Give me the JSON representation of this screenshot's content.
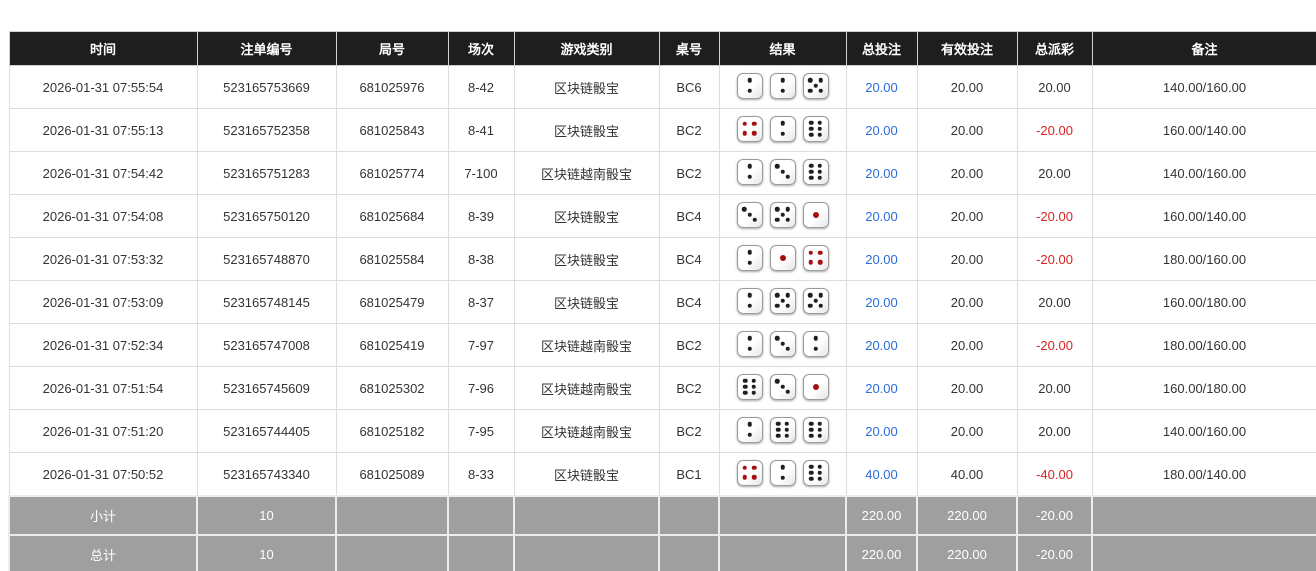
{
  "colors": {
    "bet_amount_blue": "#2b6cd9",
    "negative_red": "#dd2222",
    "header_background": "#1e1e1e",
    "summary_row_background": "#9f9f9f",
    "dice_dot_black": "#1f1f1f",
    "dice_dot_red": "#a50f0f"
  },
  "table": {
    "columns": [
      {
        "key": "time",
        "label": "时间"
      },
      {
        "key": "bet_id",
        "label": "注单编号"
      },
      {
        "key": "round",
        "label": "局号"
      },
      {
        "key": "session",
        "label": "场次"
      },
      {
        "key": "game",
        "label": "游戏类别"
      },
      {
        "key": "table_no",
        "label": "桌号"
      },
      {
        "key": "result",
        "label": "结果"
      },
      {
        "key": "total_bet",
        "label": "总投注"
      },
      {
        "key": "valid_bet",
        "label": "有效投注"
      },
      {
        "key": "payout",
        "label": "总派彩"
      },
      {
        "key": "remark",
        "label": "备注"
      }
    ],
    "dice_red_values": [
      1,
      4
    ],
    "rows": [
      {
        "time": "2026-01-31 07:55:54",
        "bet_id": "523165753669",
        "round": "681025976",
        "session": "8-42",
        "game": "区块链骰宝",
        "table_no": "BC6",
        "dice": [
          2,
          2,
          5
        ],
        "total_bet": "20.00",
        "valid_bet": "20.00",
        "payout": "20.00",
        "remark": "140.00/160.00"
      },
      {
        "time": "2026-01-31 07:55:13",
        "bet_id": "523165752358",
        "round": "681025843",
        "session": "8-41",
        "game": "区块链骰宝",
        "table_no": "BC2",
        "dice": [
          4,
          2,
          6
        ],
        "total_bet": "20.00",
        "valid_bet": "20.00",
        "payout": "-20.00",
        "remark": "160.00/140.00"
      },
      {
        "time": "2026-01-31 07:54:42",
        "bet_id": "523165751283",
        "round": "681025774",
        "session": "7-100",
        "game": "区块链越南骰宝",
        "table_no": "BC2",
        "dice": [
          2,
          3,
          6
        ],
        "total_bet": "20.00",
        "valid_bet": "20.00",
        "payout": "20.00",
        "remark": "140.00/160.00"
      },
      {
        "time": "2026-01-31 07:54:08",
        "bet_id": "523165750120",
        "round": "681025684",
        "session": "8-39",
        "game": "区块链骰宝",
        "table_no": "BC4",
        "dice": [
          3,
          5,
          1
        ],
        "total_bet": "20.00",
        "valid_bet": "20.00",
        "payout": "-20.00",
        "remark": "160.00/140.00"
      },
      {
        "time": "2026-01-31 07:53:32",
        "bet_id": "523165748870",
        "round": "681025584",
        "session": "8-38",
        "game": "区块链骰宝",
        "table_no": "BC4",
        "dice": [
          2,
          1,
          4
        ],
        "total_bet": "20.00",
        "valid_bet": "20.00",
        "payout": "-20.00",
        "remark": "180.00/160.00"
      },
      {
        "time": "2026-01-31 07:53:09",
        "bet_id": "523165748145",
        "round": "681025479",
        "session": "8-37",
        "game": "区块链骰宝",
        "table_no": "BC4",
        "dice": [
          2,
          5,
          5
        ],
        "total_bet": "20.00",
        "valid_bet": "20.00",
        "payout": "20.00",
        "remark": "160.00/180.00"
      },
      {
        "time": "2026-01-31 07:52:34",
        "bet_id": "523165747008",
        "round": "681025419",
        "session": "7-97",
        "game": "区块链越南骰宝",
        "table_no": "BC2",
        "dice": [
          2,
          3,
          2
        ],
        "total_bet": "20.00",
        "valid_bet": "20.00",
        "payout": "-20.00",
        "remark": "180.00/160.00"
      },
      {
        "time": "2026-01-31 07:51:54",
        "bet_id": "523165745609",
        "round": "681025302",
        "session": "7-96",
        "game": "区块链越南骰宝",
        "table_no": "BC2",
        "dice": [
          6,
          3,
          1
        ],
        "total_bet": "20.00",
        "valid_bet": "20.00",
        "payout": "20.00",
        "remark": "160.00/180.00"
      },
      {
        "time": "2026-01-31 07:51:20",
        "bet_id": "523165744405",
        "round": "681025182",
        "session": "7-95",
        "game": "区块链越南骰宝",
        "table_no": "BC2",
        "dice": [
          2,
          6,
          6
        ],
        "total_bet": "20.00",
        "valid_bet": "20.00",
        "payout": "20.00",
        "remark": "140.00/160.00"
      },
      {
        "time": "2026-01-31 07:50:52",
        "bet_id": "523165743340",
        "round": "681025089",
        "session": "8-33",
        "game": "区块链骰宝",
        "table_no": "BC1",
        "dice": [
          4,
          2,
          6
        ],
        "total_bet": "40.00",
        "valid_bet": "40.00",
        "payout": "-40.00",
        "remark": "180.00/140.00"
      }
    ],
    "subtotal": {
      "label": "小计",
      "count": "10",
      "total_bet": "220.00",
      "valid_bet": "220.00",
      "payout": "-20.00"
    },
    "total": {
      "label": "总计",
      "count": "10",
      "total_bet": "220.00",
      "valid_bet": "220.00",
      "payout": "-20.00"
    }
  },
  "layout_column_widths": [
    188,
    139,
    112,
    66,
    145,
    60,
    127,
    71,
    100,
    75,
    225
  ]
}
